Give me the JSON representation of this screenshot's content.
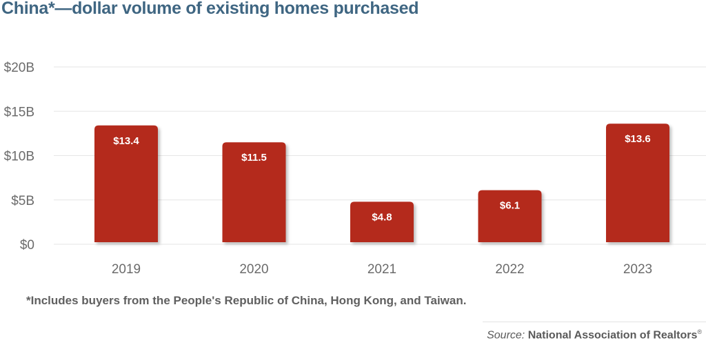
{
  "title": "China*—dollar volume of existing homes purchased",
  "footnote": "*Includes buyers from the People's Republic of China, Hong Kong, and Taiwan.",
  "source": {
    "label": "Source:",
    "name": "National Association of Realtors",
    "mark": "®"
  },
  "colors": {
    "bar": "#b42b1f",
    "title": "#3f6682",
    "grid": "#e6e6e6"
  },
  "chart_data": {
    "type": "bar",
    "title": "China*—dollar volume of existing homes purchased",
    "xlabel": "",
    "ylabel": "",
    "categories": [
      "2019",
      "2020",
      "2021",
      "2022",
      "2023"
    ],
    "values": [
      13.4,
      11.5,
      4.8,
      6.1,
      13.6
    ],
    "value_labels": [
      "$13.4",
      "$11.5",
      "$4.8",
      "$6.1",
      "$13.6"
    ],
    "units": "billions USD",
    "ylim": [
      0,
      20
    ],
    "yticks": [
      0,
      5,
      10,
      15,
      20
    ],
    "ytick_labels": [
      "$0",
      "$5B",
      "$10B",
      "$15B",
      "$20B"
    ],
    "grid": true,
    "legend": "none"
  }
}
